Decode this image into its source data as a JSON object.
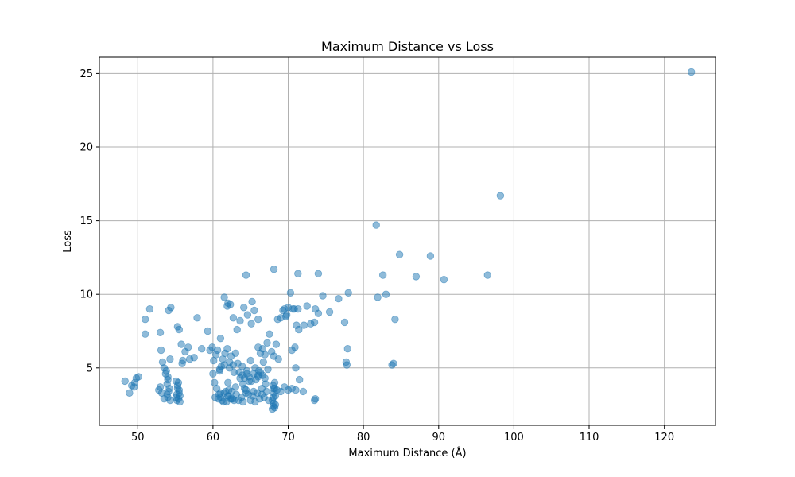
{
  "chart_data": {
    "type": "scatter",
    "title": "Maximum Distance vs Loss",
    "xlabel": "Maximum Distance (Å)",
    "ylabel": "Loss",
    "xlim": [
      44.9,
      126.8
    ],
    "ylim": [
      1.1,
      26.1
    ],
    "xticks": [
      50,
      60,
      70,
      80,
      90,
      100,
      110,
      120
    ],
    "yticks": [
      5,
      10,
      15,
      20,
      25
    ],
    "grid": true,
    "point_color": "#1f77b4",
    "point_alpha": 0.5,
    "series": [
      {
        "x": [
          48.3,
          48.9,
          49.2,
          49.5,
          49.8,
          50.1,
          49.6,
          51.0,
          51.6,
          51.0,
          53.0,
          53.1,
          53.3,
          53.5,
          53.7,
          54.0,
          54.3,
          54.1,
          54.4,
          53.8,
          53.0,
          52.8,
          53.2,
          53.9,
          54.2,
          54.0,
          53.5,
          53.9,
          54.1,
          54.3,
          54.0,
          55.1,
          55.3,
          55.5,
          55.2,
          55.4,
          55.6,
          55.3,
          55.1,
          55.5,
          55.2,
          55.4,
          55.6,
          55.3,
          55.5,
          55.8,
          56.0,
          55.9,
          56.3,
          56.7,
          56.9,
          57.5,
          57.9,
          58.5,
          59.3,
          59.6,
          59.9,
          60.0,
          60.2,
          60.5,
          60.8,
          61.0,
          61.2,
          61.5,
          61.8,
          62.0,
          62.1,
          62.3,
          62.5,
          62.8,
          60.1,
          60.4,
          60.6,
          60.9,
          61.1,
          61.3,
          61.6,
          61.9,
          62.2,
          62.4,
          62.7,
          63.0,
          60.3,
          60.7,
          61.0,
          61.4,
          61.7,
          62.0,
          62.6,
          63.1,
          63.4,
          63.8,
          64.0,
          64.4,
          61.0,
          61.5,
          61.9,
          62.3,
          62.7,
          63.2,
          63.6,
          64.1,
          64.6,
          65.1,
          65.5,
          66.0,
          63.5,
          63.9,
          64.2,
          64.5,
          64.8,
          65.1,
          65.4,
          65.7,
          66.0,
          66.3,
          66.6,
          66.9,
          64.0,
          64.4,
          64.7,
          65.0,
          65.3,
          65.6,
          65.9,
          66.2,
          66.5,
          66.8,
          67.1,
          67.4,
          66.0,
          66.3,
          66.6,
          66.9,
          67.2,
          67.5,
          67.8,
          68.1,
          68.4,
          68.7,
          67.9,
          68.0,
          68.1,
          68.2,
          68.3,
          68.0,
          68.1,
          68.2,
          67.9,
          68.3,
          68.0,
          68.2,
          68.6,
          69.0,
          69.3,
          69.5,
          69.7,
          70.0,
          70.3,
          70.6,
          70.8,
          71.1,
          71.4,
          60.9,
          61.5,
          62.2,
          62.8,
          63.3,
          63.9,
          64.5,
          65.0,
          65.6,
          66.1,
          66.7,
          67.3,
          62.0,
          62.5,
          63.0,
          63.6,
          64.2,
          64.8,
          65.4,
          66.0,
          66.5,
          67.0,
          68.0,
          68.5,
          69.0,
          69.5,
          70.0,
          70.5,
          71.0,
          71.5,
          72.0,
          72.5,
          73.0,
          73.5,
          70.9,
          71.3,
          72.1,
          73.6,
          73.5,
          74.0,
          74.6,
          75.5,
          76.7,
          77.5,
          77.7,
          77.8,
          77.9,
          78.0,
          73.6,
          71.0,
          70.5,
          64.4,
          68.1,
          71.3,
          74.0,
          62.0,
          65.2,
          69.8,
          81.7,
          81.9,
          82.6,
          83.0,
          83.8,
          84.0,
          84.2,
          84.8,
          87.0,
          88.9,
          90.7,
          96.5,
          98.2,
          123.6
        ],
        "y": [
          4.1,
          3.3,
          3.8,
          3.7,
          4.3,
          4.4,
          4.0,
          8.3,
          9.0,
          7.3,
          7.4,
          6.2,
          5.4,
          5.0,
          4.6,
          4.2,
          5.6,
          8.9,
          9.1,
          4.8,
          3.7,
          3.5,
          3.3,
          3.9,
          3.6,
          3.0,
          2.9,
          3.2,
          3.4,
          2.8,
          4.4,
          4.1,
          3.8,
          3.5,
          3.2,
          2.9,
          2.7,
          3.6,
          3.0,
          3.3,
          2.8,
          4.0,
          3.1,
          7.8,
          7.6,
          6.6,
          5.5,
          5.3,
          6.1,
          6.4,
          5.6,
          5.7,
          8.4,
          6.3,
          7.5,
          6.2,
          6.4,
          4.6,
          4.0,
          3.6,
          3.2,
          3.0,
          2.8,
          3.3,
          2.7,
          3.1,
          3.5,
          2.9,
          3.4,
          2.8,
          5.5,
          5.9,
          6.2,
          4.8,
          5.1,
          5.6,
          6.0,
          6.3,
          5.4,
          5.8,
          5.2,
          6.0,
          3.0,
          2.9,
          3.3,
          2.7,
          3.4,
          3.1,
          2.9,
          3.2,
          2.8,
          3.0,
          2.7,
          3.3,
          7.0,
          9.8,
          9.2,
          9.3,
          8.4,
          7.6,
          8.2,
          9.1,
          8.6,
          8.0,
          8.9,
          8.3,
          4.7,
          4.5,
          4.3,
          4.8,
          4.4,
          4.1,
          4.6,
          4.2,
          4.4,
          4.7,
          4.5,
          4.3,
          3.9,
          3.5,
          3.2,
          2.8,
          3.1,
          2.7,
          3.3,
          2.9,
          3.6,
          3.0,
          3.4,
          2.8,
          6.4,
          6.0,
          6.3,
          5.9,
          6.7,
          7.3,
          6.1,
          5.8,
          6.6,
          5.6,
          2.2,
          2.4,
          2.6,
          2.3,
          2.5,
          3.0,
          3.3,
          3.6,
          2.8,
          3.1,
          3.8,
          4.0,
          8.3,
          8.4,
          8.9,
          9.0,
          8.5,
          9.1,
          10.1,
          9.0,
          9.0,
          7.9,
          7.6,
          4.9,
          5.2,
          5.0,
          4.7,
          5.3,
          5.1,
          4.6,
          5.5,
          5.0,
          4.8,
          5.4,
          4.9,
          4.0,
          2.9,
          3.7,
          4.3,
          3.6,
          4.1,
          3.4,
          4.5,
          3.2,
          3.9,
          3.6,
          3.5,
          3.4,
          3.7,
          3.5,
          3.6,
          3.5,
          4.2,
          3.4,
          9.2,
          8.0,
          8.1,
          6.4,
          11.4,
          7.9,
          9.0,
          2.8,
          11.4,
          9.9,
          8.8,
          9.7,
          8.1,
          5.4,
          5.2,
          6.3,
          10.1,
          2.9,
          5.0,
          6.2,
          11.3,
          11.7,
          9.0,
          8.7,
          9.4,
          9.5,
          8.6,
          14.7,
          9.8,
          11.3,
          10.0,
          5.2,
          5.3,
          8.3,
          12.7,
          11.2,
          12.6,
          11.0,
          11.3,
          16.7,
          25.1
        ]
      }
    ]
  }
}
